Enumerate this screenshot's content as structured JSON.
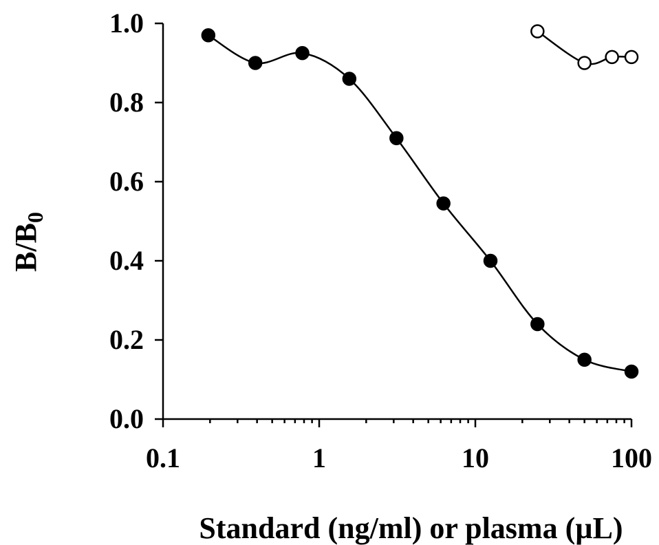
{
  "chart_data": {
    "type": "scatter",
    "title": "",
    "xlabel": "Standard (ng/ml) or plasma (µL)",
    "ylabel": "B/B",
    "ylabel_subscript": "0",
    "x_scale": "log",
    "xlim": [
      0.1,
      100
    ],
    "ylim": [
      0.0,
      1.0
    ],
    "x_ticks": [
      0.1,
      1,
      10,
      100
    ],
    "x_tick_labels": [
      "0.1",
      "1",
      "10",
      "100"
    ],
    "y_ticks": [
      0.0,
      0.2,
      0.4,
      0.6,
      0.8,
      1.0
    ],
    "y_tick_labels": [
      "0.0",
      "0.2",
      "0.4",
      "0.6",
      "0.8",
      "1.0"
    ],
    "grid": false,
    "legend": "none",
    "series": [
      {
        "marker": "filled-circle",
        "color": "#000000",
        "smooth": true,
        "x": [
          0.195,
          0.39,
          0.78,
          1.56,
          3.125,
          6.25,
          12.5,
          25,
          50,
          100
        ],
        "y": [
          0.97,
          0.9,
          0.925,
          0.86,
          0.71,
          0.545,
          0.4,
          0.24,
          0.15,
          0.12
        ]
      },
      {
        "marker": "open-circle",
        "color": "#000000",
        "smooth": true,
        "x": [
          25,
          50,
          75,
          100
        ],
        "y": [
          0.98,
          0.9,
          0.915,
          0.915
        ]
      }
    ]
  }
}
